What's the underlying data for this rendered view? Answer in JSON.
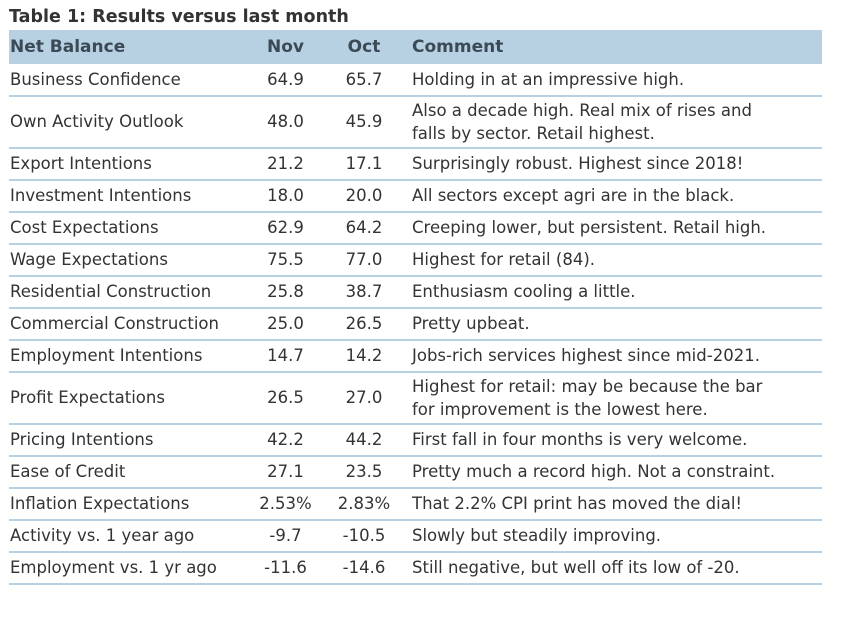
{
  "title": "Table 1: Results versus last month",
  "headers": {
    "label": "Net Balance",
    "nov": "Nov",
    "oct": "Oct",
    "comment": "Comment"
  },
  "rows": [
    {
      "label": "Business Confidence",
      "nov": "64.9",
      "oct": "65.7",
      "comment": [
        "Holding in at an impressive high."
      ]
    },
    {
      "label": "Own Activity Outlook",
      "nov": "48.0",
      "oct": "45.9",
      "comment": [
        "Also a decade high. Real mix of rises and",
        "falls by sector. Retail highest."
      ]
    },
    {
      "label": "Export Intentions",
      "nov": "21.2",
      "oct": "17.1",
      "comment": [
        "Surprisingly robust. Highest since 2018!"
      ]
    },
    {
      "label": "Investment Intentions",
      "nov": "18.0",
      "oct": "20.0",
      "comment": [
        "All sectors except agri are in the black."
      ]
    },
    {
      "label": "Cost Expectations",
      "nov": "62.9",
      "oct": "64.2",
      "comment": [
        "Creeping lower, but persistent. Retail high."
      ]
    },
    {
      "label": "Wage Expectations",
      "nov": "75.5",
      "oct": "77.0",
      "comment": [
        "Highest for retail (84)."
      ]
    },
    {
      "label": "Residential Construction",
      "nov": "25.8",
      "oct": "38.7",
      "comment": [
        "Enthusiasm cooling a little."
      ]
    },
    {
      "label": "Commercial Construction",
      "nov": "25.0",
      "oct": "26.5",
      "comment": [
        "Pretty upbeat."
      ]
    },
    {
      "label": "Employment Intentions",
      "nov": "14.7",
      "oct": "14.2",
      "comment": [
        "Jobs-rich services highest since mid-2021."
      ]
    },
    {
      "label": "Profit Expectations",
      "nov": "26.5",
      "oct": "27.0",
      "comment": [
        "Highest for retail: may be because the bar",
        "for improvement is the lowest here."
      ]
    },
    {
      "label": "Pricing Intentions",
      "nov": "42.2",
      "oct": "44.2",
      "comment": [
        "First fall in four months is very welcome."
      ]
    },
    {
      "label": "Ease of Credit",
      "nov": "27.1",
      "oct": "23.5",
      "comment": [
        "Pretty much a record high. Not a constraint."
      ]
    },
    {
      "label": "Inflation Expectations",
      "nov": "2.53%",
      "oct": "2.83%",
      "comment": [
        "That 2.2% CPI print has moved the dial!"
      ]
    },
    {
      "label": "Activity vs. 1 year ago",
      "nov": "-9.7",
      "oct": "-10.5",
      "comment": [
        "Slowly but steadily improving."
      ]
    },
    {
      "label": "Employment vs. 1 yr ago",
      "nov": "-11.6",
      "oct": "-14.6",
      "comment": [
        "Still negative, but well off its low of -20."
      ]
    }
  ]
}
